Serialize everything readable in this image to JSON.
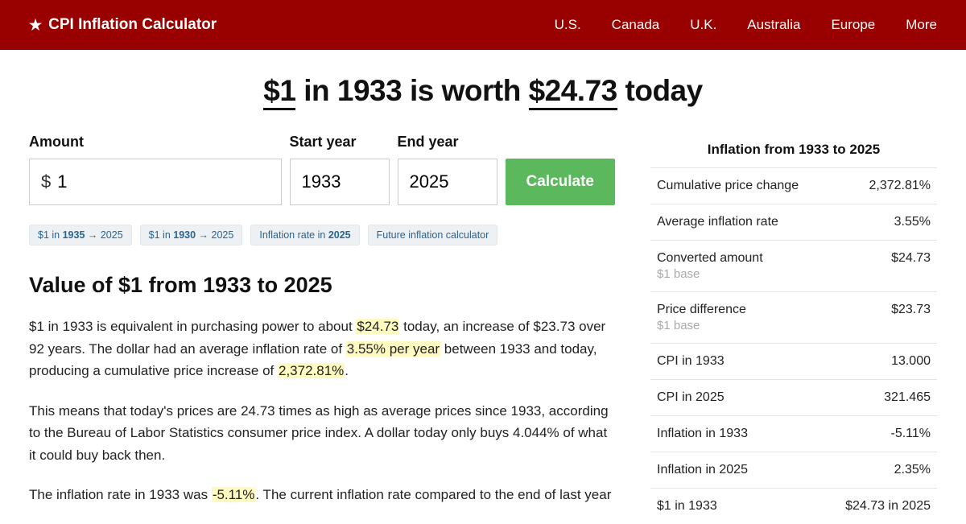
{
  "colors": {
    "header_bg": "#990000",
    "btn_bg": "#5cb85c",
    "chip_bg": "#eef1f3",
    "highlight": "#fffac0"
  },
  "brand": "CPI Inflation Calculator",
  "nav": [
    "U.S.",
    "Canada",
    "U.K.",
    "Australia",
    "Europe",
    "More"
  ],
  "headline": {
    "amount": "$1",
    "mid": " in 1933 is worth ",
    "result": "$24.73",
    "tail": " today"
  },
  "form": {
    "amount_label": "Amount",
    "amount_prefix": "$",
    "amount_value": "1",
    "start_label": "Start year",
    "start_value": "1933",
    "end_label": "End year",
    "end_value": "2025",
    "button": "Calculate"
  },
  "chips": [
    {
      "pre": "$1 in ",
      "b": "1935",
      "post": " → 2025"
    },
    {
      "pre": "$1 in ",
      "b": "1930",
      "post": " → 2025"
    },
    {
      "pre": "Inflation rate in ",
      "b": "2025",
      "post": ""
    },
    {
      "pre": "Future inflation calculator",
      "b": "",
      "post": ""
    }
  ],
  "section_heading": "Value of $1 from 1933 to 2025",
  "para1": {
    "a": "$1 in 1933 is equivalent in purchasing power to about ",
    "h1": "$24.73",
    "b": " today, an increase of $23.73 over 92 years. The dollar had an average inflation rate of ",
    "h2": "3.55% per year",
    "c": " between 1933 and today, producing a cumulative price increase of ",
    "h3": "2,372.81%",
    "d": "."
  },
  "para2": "This means that today's prices are 24.73 times as high as average prices since 1933, according to the Bureau of Labor Statistics consumer price index. A dollar today only buys 4.044% of what it could buy back then.",
  "para3": {
    "a": "The inflation rate in 1933 was ",
    "h1": "-5.11%",
    "b": ". The current inflation rate compared to the end of last year"
  },
  "sidebar": {
    "title": "Inflation from 1933 to 2025",
    "rows": [
      {
        "label": "Cumulative price change",
        "sub": "",
        "val": "2,372.81%"
      },
      {
        "label": "Average inflation rate",
        "sub": "",
        "val": "3.55%"
      },
      {
        "label": "Converted amount",
        "sub": "$1 base",
        "val": "$24.73"
      },
      {
        "label": "Price difference",
        "sub": "$1 base",
        "val": "$23.73"
      },
      {
        "label": "CPI in 1933",
        "sub": "",
        "val": "13.000"
      },
      {
        "label": "CPI in 2025",
        "sub": "",
        "val": "321.465"
      },
      {
        "label": "Inflation in 1933",
        "sub": "",
        "val": "-5.11%"
      },
      {
        "label": "Inflation in 2025",
        "sub": "",
        "val": "2.35%"
      },
      {
        "label": "$1 in 1933",
        "sub": "",
        "val": "$24.73 in 2025"
      }
    ]
  }
}
